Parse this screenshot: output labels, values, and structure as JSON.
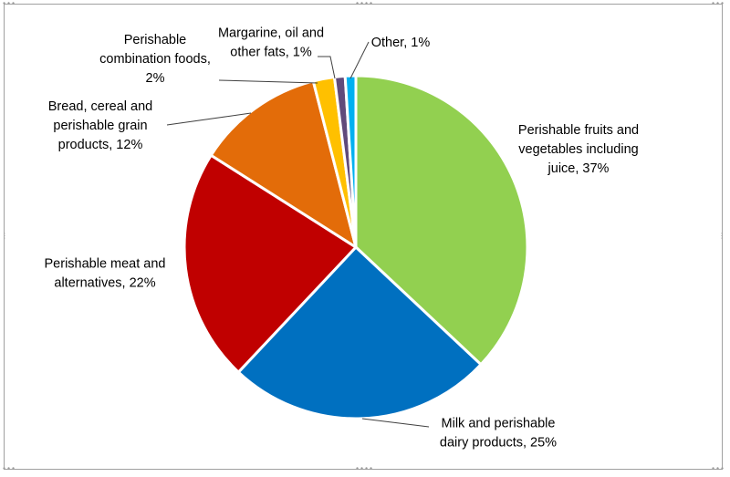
{
  "chart_data": {
    "type": "pie",
    "title": "",
    "slices": [
      {
        "label": "Perishable fruits and vegetables including juice",
        "value": 37,
        "text": "37%",
        "color": "#92d050"
      },
      {
        "label": "Milk and perishable dairy products",
        "value": 25,
        "text": "25%",
        "color": "#0070c0"
      },
      {
        "label": "Perishable meat and alternatives",
        "value": 22,
        "text": "22%",
        "color": "#c00000"
      },
      {
        "label": "Bread, cereal and perishable grain products",
        "value": 12,
        "text": "12%",
        "color": "#e36c09"
      },
      {
        "label": "Perishable combination foods",
        "value": 2,
        "text": "2%",
        "color": "#ffc000"
      },
      {
        "label": "Margarine, oil and other fats",
        "value": 1,
        "text": "1%",
        "color": "#604a7b"
      },
      {
        "label": "Other",
        "value": 1,
        "text": "1%",
        "color": "#00b0f0"
      }
    ],
    "label_lines": [
      [
        "Perishable fruits and",
        "vegetables including",
        "juice, 37%"
      ],
      [
        "Milk and perishable",
        "dairy products, 25%"
      ],
      [
        "Perishable meat and",
        "alternatives, 22%"
      ],
      [
        "Bread, cereal and",
        "perishable grain",
        "products, 12%"
      ],
      [
        "Perishable",
        "combination foods,",
        "2%"
      ],
      [
        "Margarine, oil and",
        "other fats, 1%"
      ],
      [
        "Other, 1%"
      ]
    ],
    "legend": "none",
    "start_angle_deg": 0,
    "direction": "clockwise"
  }
}
